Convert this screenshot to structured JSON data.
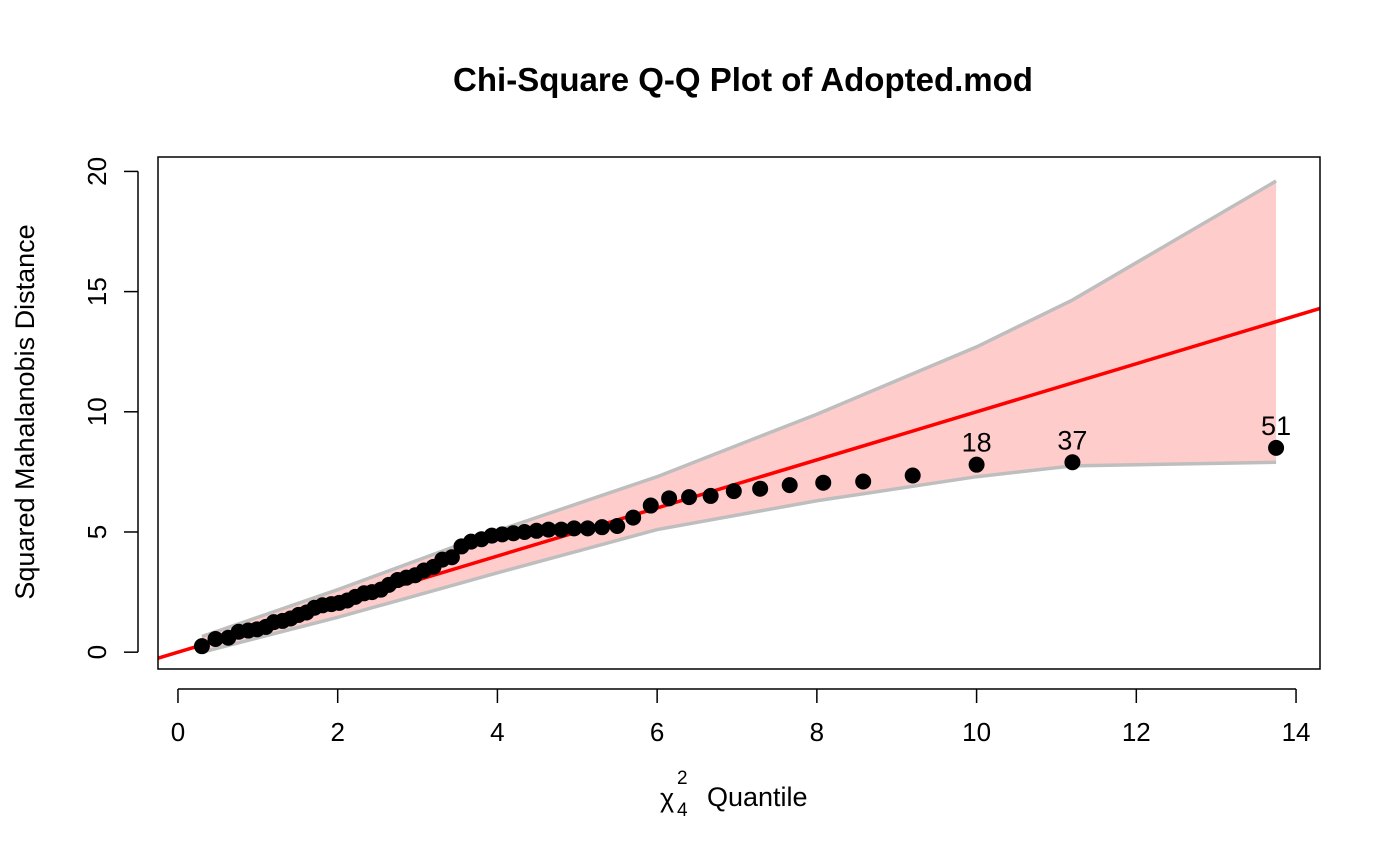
{
  "chart_data": {
    "type": "scatter",
    "title": "Chi-Square Q-Q Plot of Adopted.mod",
    "xlabel": {
      "symbol": "χ",
      "superscript": "2",
      "subscript": "4",
      "text": "Quantile"
    },
    "ylabel": "Squared Mahalanobis Distance",
    "xlim": [
      -0.25,
      14.3
    ],
    "ylim": [
      -0.7,
      20.6
    ],
    "xticks": [
      "0",
      "2",
      "4",
      "6",
      "8",
      "10",
      "12",
      "14"
    ],
    "yticks": [
      "0",
      "5",
      "10",
      "15",
      "20"
    ],
    "colors": {
      "points": "#000000",
      "reference_line": "#ff0000",
      "envelope_fill": "#ffcccc",
      "envelope_line": "#bebebe"
    },
    "reference_line": {
      "intercept": 0,
      "slope": 1
    },
    "envelope": {
      "x": [
        0.3,
        2,
        4,
        6,
        8,
        10,
        11.2,
        13.75
      ],
      "lower": [
        0.0,
        1.45,
        3.3,
        5.1,
        6.3,
        7.3,
        7.75,
        7.9
      ],
      "upper": [
        0.65,
        2.6,
        5.05,
        7.3,
        9.9,
        12.7,
        14.65,
        19.6
      ]
    },
    "points": [
      {
        "x": 0.3,
        "y": 0.25
      },
      {
        "x": 0.47,
        "y": 0.55
      },
      {
        "x": 0.63,
        "y": 0.6
      },
      {
        "x": 0.76,
        "y": 0.85
      },
      {
        "x": 0.88,
        "y": 0.9
      },
      {
        "x": 0.99,
        "y": 0.95
      },
      {
        "x": 1.1,
        "y": 1.05
      },
      {
        "x": 1.2,
        "y": 1.25
      },
      {
        "x": 1.31,
        "y": 1.3
      },
      {
        "x": 1.41,
        "y": 1.4
      },
      {
        "x": 1.51,
        "y": 1.55
      },
      {
        "x": 1.61,
        "y": 1.65
      },
      {
        "x": 1.71,
        "y": 1.85
      },
      {
        "x": 1.81,
        "y": 1.95
      },
      {
        "x": 1.92,
        "y": 2.0
      },
      {
        "x": 2.02,
        "y": 2.05
      },
      {
        "x": 2.12,
        "y": 2.15
      },
      {
        "x": 2.22,
        "y": 2.3
      },
      {
        "x": 2.33,
        "y": 2.45
      },
      {
        "x": 2.43,
        "y": 2.5
      },
      {
        "x": 2.54,
        "y": 2.6
      },
      {
        "x": 2.64,
        "y": 2.8
      },
      {
        "x": 2.75,
        "y": 3.0
      },
      {
        "x": 2.86,
        "y": 3.1
      },
      {
        "x": 2.97,
        "y": 3.2
      },
      {
        "x": 3.08,
        "y": 3.4
      },
      {
        "x": 3.2,
        "y": 3.55
      },
      {
        "x": 3.31,
        "y": 3.85
      },
      {
        "x": 3.43,
        "y": 3.95
      },
      {
        "x": 3.55,
        "y": 4.4
      },
      {
        "x": 3.67,
        "y": 4.6
      },
      {
        "x": 3.8,
        "y": 4.7
      },
      {
        "x": 3.93,
        "y": 4.85
      },
      {
        "x": 4.06,
        "y": 4.9
      },
      {
        "x": 4.2,
        "y": 4.95
      },
      {
        "x": 4.34,
        "y": 5.0
      },
      {
        "x": 4.49,
        "y": 5.05
      },
      {
        "x": 4.64,
        "y": 5.1
      },
      {
        "x": 4.8,
        "y": 5.1
      },
      {
        "x": 4.96,
        "y": 5.15
      },
      {
        "x": 5.13,
        "y": 5.15
      },
      {
        "x": 5.31,
        "y": 5.2
      },
      {
        "x": 5.5,
        "y": 5.25
      },
      {
        "x": 5.7,
        "y": 5.6
      },
      {
        "x": 5.92,
        "y": 6.1
      },
      {
        "x": 6.15,
        "y": 6.4
      },
      {
        "x": 6.4,
        "y": 6.45
      },
      {
        "x": 6.67,
        "y": 6.5
      },
      {
        "x": 6.96,
        "y": 6.7
      },
      {
        "x": 7.29,
        "y": 6.8
      },
      {
        "x": 7.66,
        "y": 6.95
      },
      {
        "x": 8.08,
        "y": 7.05
      },
      {
        "x": 8.58,
        "y": 7.1
      },
      {
        "x": 9.2,
        "y": 7.35
      },
      {
        "x": 10.0,
        "y": 7.8
      },
      {
        "x": 11.2,
        "y": 7.9
      },
      {
        "x": 13.75,
        "y": 8.5
      }
    ],
    "labeled_points": [
      {
        "label": "18",
        "x": 10.0,
        "y": 7.8
      },
      {
        "label": "37",
        "x": 11.2,
        "y": 7.9
      },
      {
        "label": "51",
        "x": 13.75,
        "y": 8.5
      }
    ]
  }
}
